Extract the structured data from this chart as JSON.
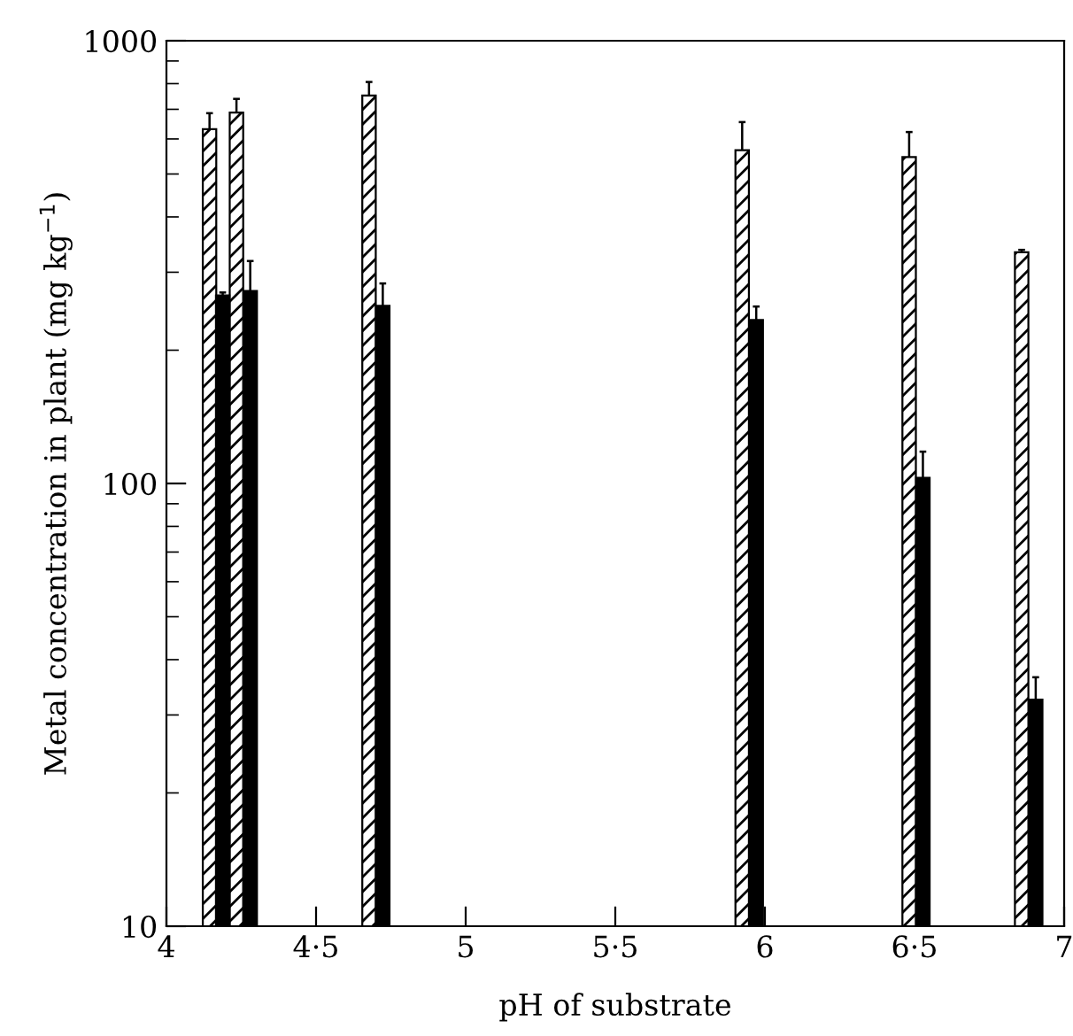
{
  "chart_data": {
    "type": "bar",
    "xlabel": "pH of substrate",
    "ylabel": "Metal concentration in plant (mg kg$^{−1}$)",
    "log": "y",
    "xlim": [
      4,
      7
    ],
    "ylim": [
      10,
      1000
    ],
    "xticks": [
      4,
      {
        "value": 4.5,
        "label": "4·5"
      },
      5,
      {
        "value": 5.5,
        "label": "5·5"
      },
      6,
      {
        "value": 6.5,
        "label": "6·5"
      },
      7
    ],
    "yticks": [
      10,
      100,
      1000
    ],
    "grid": false,
    "legend": false,
    "series": [
      {
        "color": "#000000",
        "x": [
          4.144,
          4.234,
          4.677,
          5.924,
          6.482,
          6.858
        ],
        "values": [
          631,
          688,
          752,
          566,
          546,
          333
        ],
        "errors": [
          [
            631,
            686
          ],
          [
            688,
            739
          ],
          [
            752,
            807
          ],
          [
            566,
            655
          ],
          [
            546,
            622
          ],
          [
            333,
            337
          ]
        ]
      },
      {
        "color": "#000000",
        "x": [
          4.188,
          4.28,
          4.723,
          5.971,
          6.528,
          6.905
        ],
        "values": [
          266,
          272,
          252,
          234,
          103,
          32.5
        ],
        "errors": [
          [
            266,
            270
          ],
          [
            272,
            318
          ],
          [
            252,
            283
          ],
          [
            234,
            251
          ],
          [
            103,
            118
          ],
          [
            32.5,
            36.5
          ]
        ]
      }
    ]
  }
}
